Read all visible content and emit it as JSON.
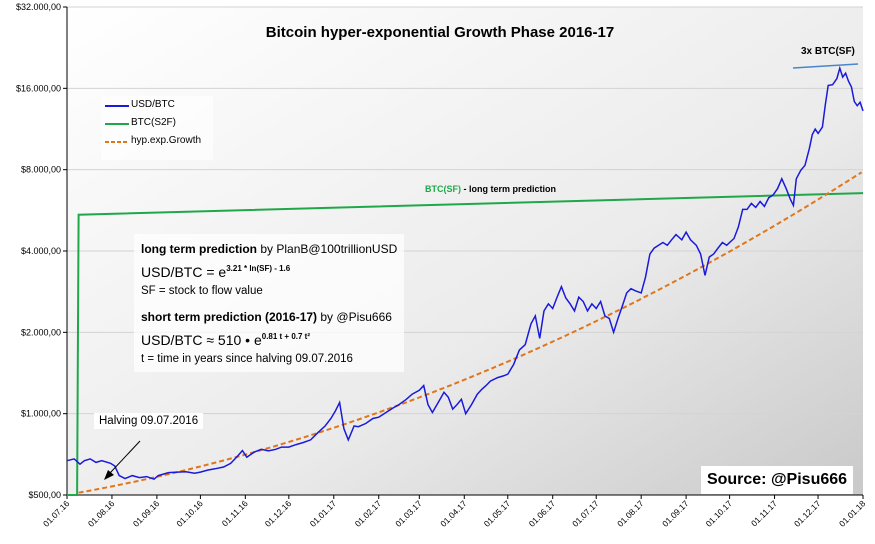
{
  "chart_data": {
    "type": "line",
    "title": "Bitcoin hyper-exponential Growth Phase 2016-17",
    "yscale": "log2",
    "ylim": [
      500,
      32000
    ],
    "y_ticks": [
      "$500,00",
      "$1.000,00",
      "$2.000,00",
      "$4.000,00",
      "$8.000,00",
      "$16.000,00",
      "$32.000,00"
    ],
    "y_tick_values": [
      500,
      1000,
      2000,
      4000,
      8000,
      16000,
      32000
    ],
    "x_ticks": [
      "01.07.16",
      "01.08.16",
      "01.09.16",
      "01.10.16",
      "01.11.16",
      "01.12.16",
      "01.01.17",
      "01.02.17",
      "01.03.17",
      "01.04.17",
      "01.05.17",
      "01.06.17",
      "01.07.17",
      "01.08.17",
      "01.09.17",
      "01.10.17",
      "01.11.17",
      "01.12.17",
      "01.01.18"
    ],
    "x_tick_days": [
      0,
      31,
      62,
      92,
      123,
      153,
      184,
      215,
      243,
      274,
      304,
      335,
      365,
      396,
      427,
      457,
      488,
      518,
      549
    ],
    "series": [
      {
        "name": "USD/BTC",
        "color": "#1a1adb",
        "points": [
          [
            0,
            670
          ],
          [
            5,
            680
          ],
          [
            9,
            650
          ],
          [
            12,
            670
          ],
          [
            16,
            680
          ],
          [
            20,
            660
          ],
          [
            24,
            670
          ],
          [
            30,
            655
          ],
          [
            33,
            640
          ],
          [
            36,
            590
          ],
          [
            40,
            575
          ],
          [
            45,
            590
          ],
          [
            50,
            580
          ],
          [
            55,
            585
          ],
          [
            60,
            572
          ],
          [
            63,
            590
          ],
          [
            70,
            605
          ],
          [
            76,
            608
          ],
          [
            82,
            610
          ],
          [
            88,
            602
          ],
          [
            92,
            608
          ],
          [
            97,
            618
          ],
          [
            102,
            625
          ],
          [
            108,
            635
          ],
          [
            113,
            655
          ],
          [
            118,
            700
          ],
          [
            121,
            730
          ],
          [
            124,
            690
          ],
          [
            129,
            720
          ],
          [
            134,
            738
          ],
          [
            139,
            728
          ],
          [
            144,
            738
          ],
          [
            148,
            752
          ],
          [
            153,
            752
          ],
          [
            158,
            768
          ],
          [
            163,
            782
          ],
          [
            168,
            800
          ],
          [
            173,
            850
          ],
          [
            178,
            900
          ],
          [
            182,
            960
          ],
          [
            185,
            1020
          ],
          [
            188,
            1100
          ],
          [
            191,
            880
          ],
          [
            194,
            800
          ],
          [
            198,
            900
          ],
          [
            201,
            895
          ],
          [
            206,
            920
          ],
          [
            211,
            960
          ],
          [
            215,
            970
          ],
          [
            220,
            1010
          ],
          [
            225,
            1050
          ],
          [
            229,
            1080
          ],
          [
            234,
            1130
          ],
          [
            238,
            1180
          ],
          [
            243,
            1220
          ],
          [
            246,
            1270
          ],
          [
            249,
            1080
          ],
          [
            252,
            1010
          ],
          [
            256,
            1100
          ],
          [
            260,
            1200
          ],
          [
            263,
            1150
          ],
          [
            266,
            1040
          ],
          [
            269,
            1080
          ],
          [
            272,
            1130
          ],
          [
            275,
            1000
          ],
          [
            279,
            1080
          ],
          [
            283,
            1180
          ],
          [
            286,
            1230
          ],
          [
            289,
            1270
          ],
          [
            292,
            1320
          ],
          [
            297,
            1360
          ],
          [
            301,
            1380
          ],
          [
            304,
            1400
          ],
          [
            308,
            1520
          ],
          [
            312,
            1720
          ],
          [
            316,
            1800
          ],
          [
            320,
            2150
          ],
          [
            323,
            2300
          ],
          [
            326,
            1900
          ],
          [
            329,
            2400
          ],
          [
            332,
            2550
          ],
          [
            335,
            2450
          ],
          [
            338,
            2700
          ],
          [
            341,
            2950
          ],
          [
            344,
            2680
          ],
          [
            347,
            2550
          ],
          [
            350,
            2400
          ],
          [
            353,
            2700
          ],
          [
            356,
            2600
          ],
          [
            359,
            2400
          ],
          [
            362,
            2550
          ],
          [
            365,
            2450
          ],
          [
            368,
            2600
          ],
          [
            371,
            2300
          ],
          [
            374,
            2250
          ],
          [
            377,
            2000
          ],
          [
            380,
            2250
          ],
          [
            383,
            2500
          ],
          [
            386,
            2800
          ],
          [
            389,
            2900
          ],
          [
            392,
            2850
          ],
          [
            396,
            2800
          ],
          [
            399,
            3200
          ],
          [
            402,
            3900
          ],
          [
            405,
            4100
          ],
          [
            408,
            4200
          ],
          [
            411,
            4300
          ],
          [
            414,
            4200
          ],
          [
            417,
            4400
          ],
          [
            420,
            4600
          ],
          [
            424,
            4400
          ],
          [
            427,
            4700
          ],
          [
            430,
            4400
          ],
          [
            434,
            4200
          ],
          [
            437,
            3900
          ],
          [
            440,
            3250
          ],
          [
            443,
            3800
          ],
          [
            446,
            3900
          ],
          [
            449,
            4100
          ],
          [
            452,
            4300
          ],
          [
            455,
            4200
          ],
          [
            457,
            4300
          ],
          [
            460,
            4450
          ],
          [
            463,
            4900
          ],
          [
            466,
            5700
          ],
          [
            469,
            5700
          ],
          [
            472,
            6000
          ],
          [
            475,
            5800
          ],
          [
            478,
            6100
          ],
          [
            481,
            5850
          ],
          [
            484,
            6300
          ],
          [
            487,
            6450
          ],
          [
            490,
            6800
          ],
          [
            493,
            7400
          ],
          [
            496,
            6800
          ],
          [
            499,
            6200
          ],
          [
            501,
            5900
          ],
          [
            503,
            7400
          ],
          [
            506,
            7950
          ],
          [
            509,
            8300
          ],
          [
            512,
            9600
          ],
          [
            514,
            10800
          ],
          [
            516,
            11300
          ],
          [
            518,
            10900
          ],
          [
            521,
            11500
          ],
          [
            523,
            13900
          ],
          [
            525,
            16400
          ],
          [
            528,
            16500
          ],
          [
            531,
            17400
          ],
          [
            533,
            19000
          ],
          [
            535,
            17600
          ],
          [
            537,
            18200
          ],
          [
            539,
            17000
          ],
          [
            541,
            16200
          ],
          [
            543,
            14300
          ],
          [
            545,
            13800
          ],
          [
            547,
            14200
          ],
          [
            549,
            13200
          ]
        ]
      },
      {
        "name": "BTC(S2F)",
        "color": "#1fa84a",
        "points": [
          [
            0,
            500
          ],
          [
            7,
            500
          ],
          [
            8,
            5450
          ],
          [
            549,
            6550
          ]
        ]
      },
      {
        "name": "hyp.exp.Growth",
        "color": "#e0761c",
        "style": "dashed",
        "formula": "510*exp(0.81*t+0.7*t^2)"
      }
    ],
    "legend": [
      "USD/BTC",
      "BTC(S2F)",
      "hyp.exp.Growth"
    ],
    "annotations": {
      "sf_label": "3x BTC(SF)",
      "lt_label_green": "BTC(SF)",
      "lt_label_rest": " -  long term prediction",
      "halving_label": "Halving 09.07.2016",
      "source": "Source: @Pisu666"
    },
    "formula_box": {
      "lt_bold": "long term prediction",
      "lt_by": " by PlanB@100trillionUSD",
      "lt_formula_pre": "USD/BTC = e",
      "lt_formula_sup": "3.21 * ln(SF) - 1.6",
      "sf_def": "SF = stock to flow value",
      "st_bold": "short term prediction (2016-17)",
      "st_by": " by @Pisu666",
      "st_formula_pre": "USD/BTC ≈ 510 • e",
      "st_formula_sup": "0.81 t + 0.7 t²",
      "t_def": "t = time in years since halving 09.07.2016"
    }
  }
}
